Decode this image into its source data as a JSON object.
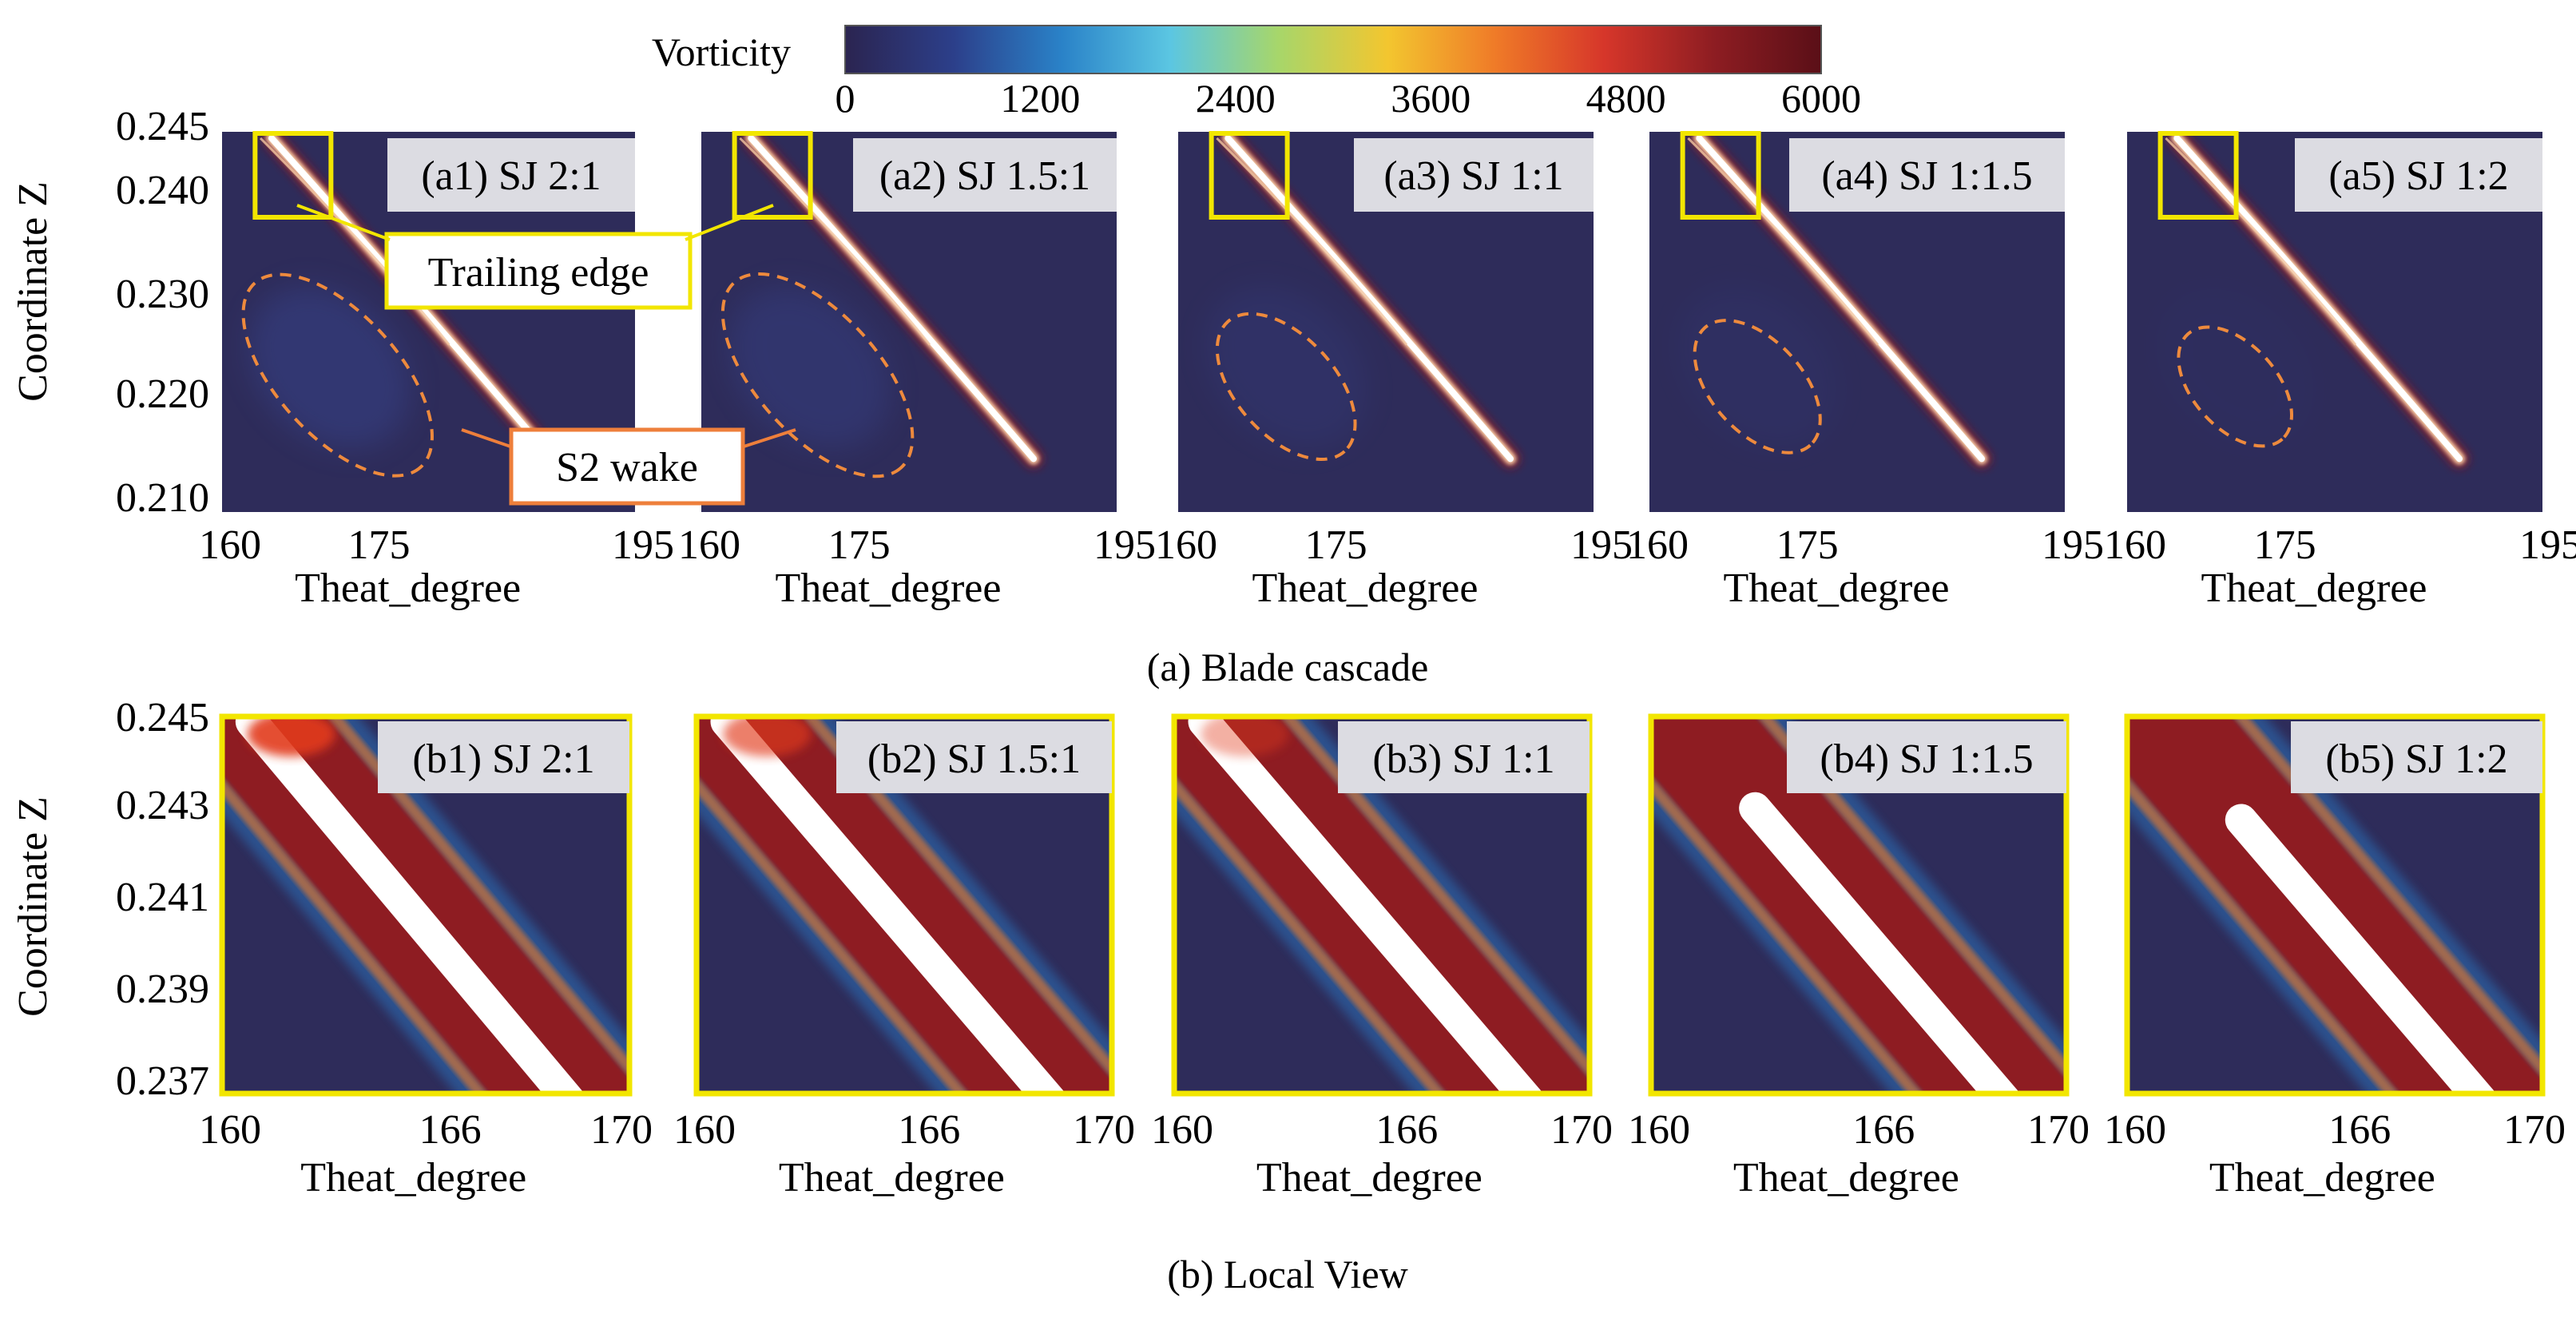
{
  "colorbar": {
    "title": "Vorticity",
    "ticks": [
      "0",
      "1200",
      "2400",
      "3600",
      "4800",
      "6000"
    ],
    "range": [
      0,
      6000
    ],
    "stops": [
      "#2b2450",
      "#2c3f8a",
      "#2a82c8",
      "#5bc6e2",
      "#a7d66a",
      "#f3c62f",
      "#ef7a28",
      "#d6362a",
      "#8e1d22",
      "#5a0f17"
    ]
  },
  "row_a": {
    "caption": "(a) Blade cascade",
    "ylabel": "Coordinate Z",
    "yticks": [
      "0.245",
      "0.240",
      "0.230",
      "0.220",
      "0.210"
    ],
    "xticks": [
      "160",
      "175",
      "195"
    ],
    "xlabel": "Theat_degree",
    "panels": [
      {
        "label": "(a1) SJ 2:1",
        "wake_strength": 1.0
      },
      {
        "label": "(a2) SJ 1.5:1",
        "wake_strength": 0.8
      },
      {
        "label": "(a3) SJ 1:1",
        "wake_strength": 0.5
      },
      {
        "label": "(a4) SJ 1:1.5",
        "wake_strength": 0.3
      },
      {
        "label": "(a5) SJ 1:2",
        "wake_strength": 0.15
      }
    ],
    "annotations": {
      "trailing_edge": "Trailing edge",
      "s2_wake": "S2 wake"
    }
  },
  "row_b": {
    "caption": "(b) Local View",
    "ylabel": "Coordinate Z",
    "yticks": [
      "0.245",
      "0.243",
      "0.241",
      "0.239",
      "0.237"
    ],
    "xticks": [
      "160",
      "166",
      "170"
    ],
    "xlabel": "Theat_degree",
    "panels": [
      {
        "label": "(b1) SJ 2:1"
      },
      {
        "label": "(b2) SJ 1.5:1"
      },
      {
        "label": "(b3) SJ 1:1"
      },
      {
        "label": "(b4) SJ 1:1.5"
      },
      {
        "label": "(b5) SJ 1:2"
      }
    ]
  }
}
